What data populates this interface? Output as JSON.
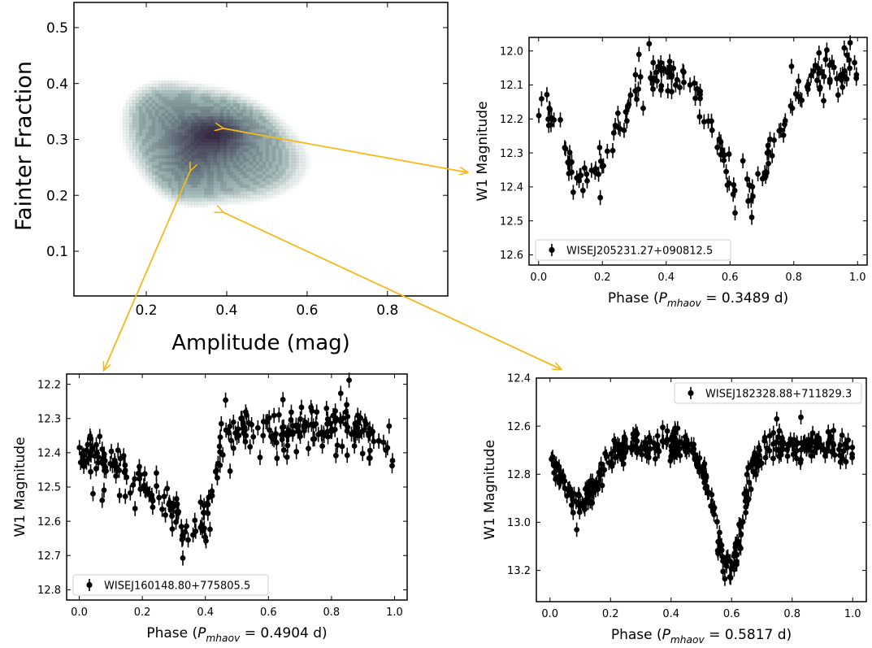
{
  "colors": {
    "arrow": "#f5b91b",
    "density_light": "#b8d2cc",
    "density_mid": "#7a8f96",
    "density_dark": "#3a2f48",
    "points": "#000000"
  },
  "chart_data": [
    {
      "id": "density",
      "type": "heatmap",
      "xlabel": "Amplitude (mag)",
      "ylabel": "Fainter Fraction",
      "xlim": [
        0.02,
        0.95
      ],
      "ylim": [
        0.02,
        0.545
      ],
      "xticks": [
        0.2,
        0.4,
        0.6,
        0.8
      ],
      "xtick_labels": [
        "0.2",
        "0.4",
        "0.6",
        "0.8"
      ],
      "yticks": [
        0.1,
        0.2,
        0.3,
        0.4,
        0.5
      ],
      "ytick_labels": [
        "0.1",
        "0.2",
        "0.3",
        "0.4",
        "0.5"
      ],
      "density_components": [
        {
          "x": 0.33,
          "y": 0.305,
          "sx": 0.11,
          "sy": 0.055,
          "w": 1.0
        },
        {
          "x": 0.38,
          "y": 0.315,
          "sx": 0.06,
          "sy": 0.025,
          "w": 0.8
        },
        {
          "x": 0.45,
          "y": 0.255,
          "sx": 0.12,
          "sy": 0.05,
          "w": 0.55
        },
        {
          "x": 0.3,
          "y": 0.245,
          "sx": 0.05,
          "sy": 0.04,
          "w": 0.45
        },
        {
          "x": 0.23,
          "y": 0.36,
          "sx": 0.06,
          "sy": 0.035,
          "w": 0.35
        }
      ],
      "markers": [
        {
          "name": "WISEJ205231.27+090812.5",
          "x": 0.39,
          "y": 0.32
        },
        {
          "name": "WISEJ160148.80+775805.5",
          "x": 0.31,
          "y": 0.245
        },
        {
          "name": "WISEJ182328.88+711829.3",
          "x": 0.39,
          "y": 0.17
        }
      ],
      "grid": false
    },
    {
      "id": "lc1",
      "type": "scatter",
      "xlabel_prefix": "Phase (",
      "xlabel_symbol": "P",
      "xlabel_sub": "mhaov",
      "xlabel_suffix": " = 0.3489 d)",
      "ylabel": "W1 Magnitude",
      "legend": "WISEJ205231.27+090812.5",
      "legend_position": "bottom-left",
      "xlim": [
        -0.03,
        1.03
      ],
      "ylim": [
        12.63,
        11.96
      ],
      "inverted_y": true,
      "xticks": [
        0.0,
        0.2,
        0.4,
        0.6,
        0.8,
        1.0
      ],
      "xtick_labels": [
        "0.0",
        "0.2",
        "0.4",
        "0.6",
        "0.8",
        "1.0"
      ],
      "yticks": [
        12.0,
        12.1,
        12.2,
        12.3,
        12.4,
        12.5,
        12.6
      ],
      "ytick_labels": [
        "12.0",
        "12.1",
        "12.2",
        "12.3",
        "12.4",
        "12.5",
        "12.6"
      ],
      "curve": {
        "base": 12.06,
        "dips": [
          {
            "center": 0.15,
            "depth": 0.33,
            "width": 0.085
          },
          {
            "center": 0.65,
            "depth": 0.38,
            "width": 0.085
          }
        ]
      },
      "n_points": 190,
      "scatter": 0.03,
      "errorbar": 0.022,
      "seed": 11,
      "grid": false
    },
    {
      "id": "lc2",
      "type": "scatter",
      "xlabel_prefix": "Phase (",
      "xlabel_symbol": "P",
      "xlabel_sub": "mhaov",
      "xlabel_suffix": " = 0.4904 d)",
      "ylabel": "W1 Magnitude",
      "legend": "WISEJ160148.80+775805.5",
      "legend_position": "bottom-left",
      "xlim": [
        -0.04,
        1.04
      ],
      "ylim": [
        12.83,
        12.17
      ],
      "inverted_y": true,
      "xticks": [
        0.0,
        0.2,
        0.4,
        0.6,
        0.8,
        1.0
      ],
      "xtick_labels": [
        "0.0",
        "0.2",
        "0.4",
        "0.6",
        "0.8",
        "1.0"
      ],
      "yticks": [
        12.2,
        12.3,
        12.4,
        12.5,
        12.6,
        12.7,
        12.8
      ],
      "ytick_labels": [
        "12.2",
        "12.3",
        "12.4",
        "12.5",
        "12.6",
        "12.7",
        "12.8"
      ],
      "curve": {
        "profile": [
          [
            0.0,
            12.4
          ],
          [
            0.1,
            12.43
          ],
          [
            0.2,
            12.5
          ],
          [
            0.3,
            12.58
          ],
          [
            0.36,
            12.65
          ],
          [
            0.4,
            12.6
          ],
          [
            0.45,
            12.37
          ],
          [
            0.5,
            12.34
          ],
          [
            0.7,
            12.32
          ],
          [
            0.9,
            12.34
          ],
          [
            1.0,
            12.4
          ]
        ]
      },
      "n_points": 300,
      "scatter": 0.03,
      "errorbar": 0.022,
      "seed": 23,
      "grid": false
    },
    {
      "id": "lc3",
      "type": "scatter",
      "xlabel_prefix": "Phase (",
      "xlabel_symbol": "P",
      "xlabel_sub": "mhaov",
      "xlabel_suffix": " = 0.5817 d)",
      "ylabel": "W1 Magnitude",
      "legend": "WISEJ182328.88+711829.3",
      "legend_position": "top-right",
      "xlim": [
        -0.045,
        1.045
      ],
      "ylim": [
        13.33,
        12.4
      ],
      "inverted_y": true,
      "xticks": [
        0.0,
        0.2,
        0.4,
        0.6,
        0.8,
        1.0
      ],
      "xtick_labels": [
        "0.0",
        "0.2",
        "0.4",
        "0.6",
        "0.8",
        "1.0"
      ],
      "yticks": [
        12.4,
        12.6,
        12.8,
        13.0,
        13.2
      ],
      "ytick_labels": [
        "12.4",
        "12.6",
        "12.8",
        "13.0",
        "13.2"
      ],
      "curve": {
        "base": 12.68,
        "dips": [
          {
            "center": 0.095,
            "depth": 0.23,
            "width": 0.06
          },
          {
            "center": 0.59,
            "depth": 0.52,
            "width": 0.045
          }
        ]
      },
      "n_points": 420,
      "scatter": 0.03,
      "errorbar": 0.03,
      "seed": 37,
      "grid": false
    }
  ]
}
